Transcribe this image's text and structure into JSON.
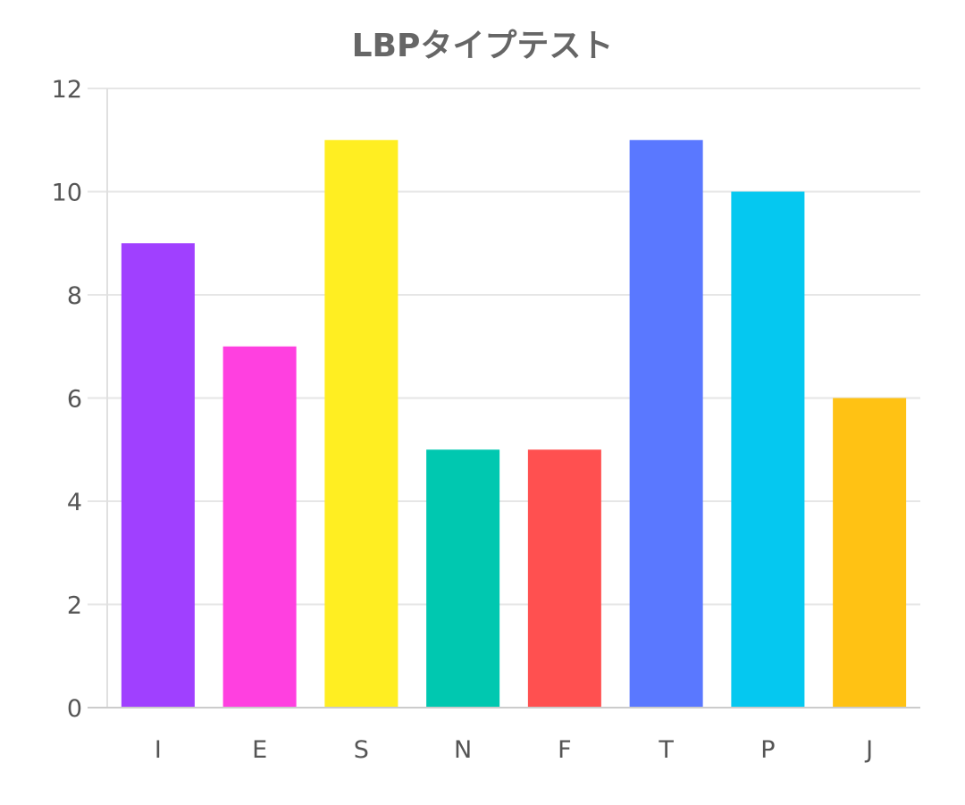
{
  "chart_data": {
    "type": "bar",
    "title": "LBPタイプテスト",
    "categories": [
      "I",
      "E",
      "S",
      "N",
      "F",
      "T",
      "P",
      "J"
    ],
    "values": [
      9,
      7,
      11,
      5,
      5,
      11,
      10,
      6
    ],
    "colors": [
      "#a040ff",
      "#ff40e0",
      "#ffee22",
      "#00c8b0",
      "#ff5050",
      "#5a78ff",
      "#05c8f0",
      "#ffc214"
    ],
    "ylim": [
      0,
      12
    ],
    "yticks": [
      0,
      2,
      4,
      6,
      8,
      10,
      12
    ],
    "grid": true,
    "legend": "none"
  }
}
